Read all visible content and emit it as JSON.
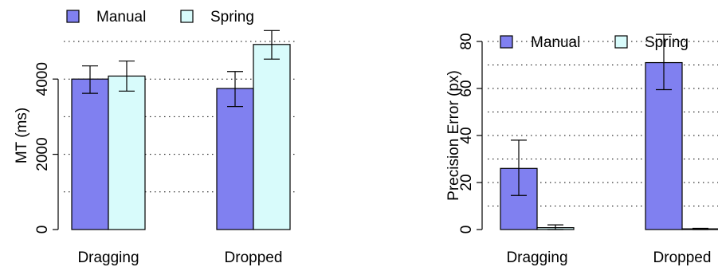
{
  "chart_data": [
    {
      "type": "bar",
      "title": "",
      "xlabel": "",
      "ylabel": "MT (ms)",
      "categories": [
        "Dragging",
        "Dropped"
      ],
      "ylim": [
        0,
        5000
      ],
      "yticks": [
        0,
        2000,
        4000
      ],
      "grid": "horizontal dotted",
      "legend": "top-left",
      "series": [
        {
          "name": "Manual",
          "color": "#8080f0",
          "values": [
            4000,
            3750
          ],
          "error": [
            [
              3620,
              4350
            ],
            [
              3270,
              4200
            ]
          ]
        },
        {
          "name": "Spring",
          "color": "#d8fbfb",
          "values": [
            4080,
            4920
          ],
          "error": [
            [
              3680,
              4480
            ],
            [
              4530,
              5290
            ]
          ]
        }
      ]
    },
    {
      "type": "bar",
      "title": "",
      "xlabel": "",
      "ylabel": "Precision Error (px)",
      "categories": [
        "Dragging",
        "Dropped"
      ],
      "ylim": [
        0,
        80
      ],
      "yticks": [
        0,
        20,
        40,
        60,
        80
      ],
      "grid": "horizontal dotted",
      "legend": "top-left",
      "series": [
        {
          "name": "Manual",
          "color": "#8080f0",
          "values": [
            26,
            71
          ],
          "error": [
            [
              14.5,
              38
            ],
            [
              59.5,
              83
            ]
          ]
        },
        {
          "name": "Spring",
          "color": "#d8fbfb",
          "values": [
            0.8,
            0.3
          ],
          "error": [
            [
              0,
              2
            ],
            [
              0,
              0.5
            ]
          ]
        }
      ]
    }
  ]
}
